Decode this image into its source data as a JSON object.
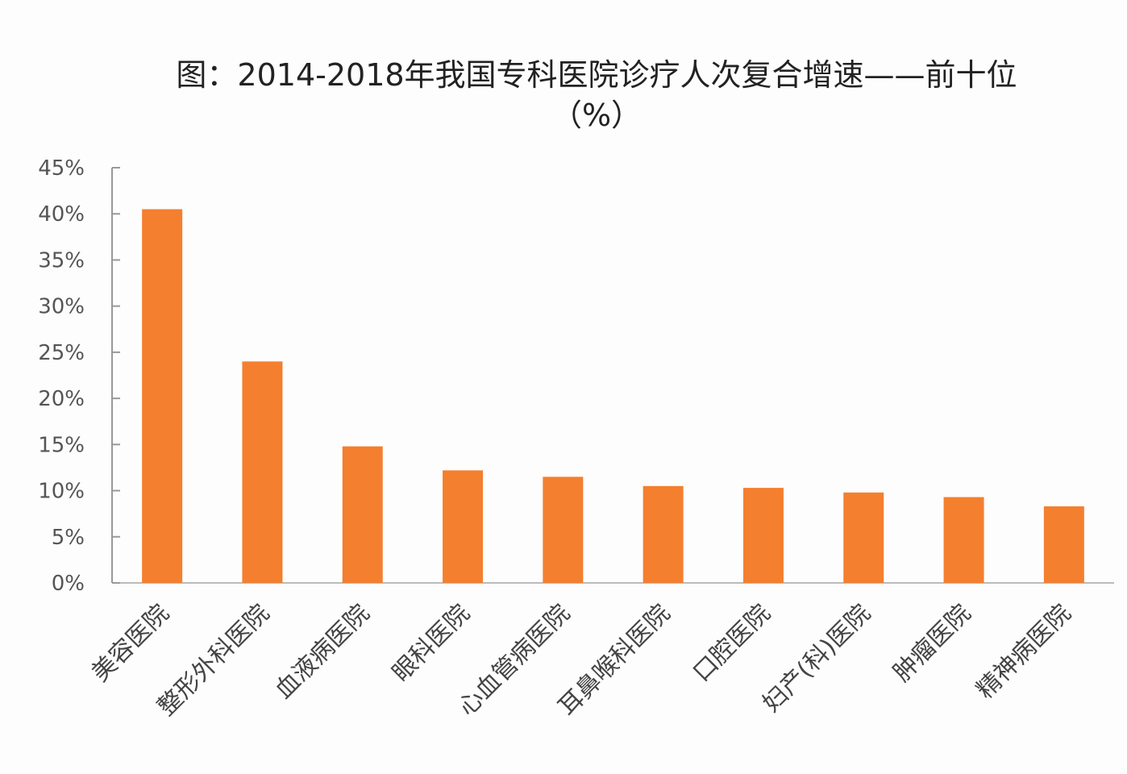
{
  "chart_data": {
    "type": "bar",
    "title": "图：2014-2018年我国专科医院诊疗人次复合增速——前十位",
    "subtitle": "（%）",
    "categories": [
      "美容医院",
      "整形外科医院",
      "血液病医院",
      "眼科医院",
      "心血管病医院",
      "耳鼻喉科医院",
      "口腔医院",
      "妇产(科)医院",
      "肿瘤医院",
      "精神病医院"
    ],
    "values": [
      40.5,
      24.0,
      14.8,
      12.2,
      11.5,
      10.5,
      10.3,
      9.8,
      9.3,
      8.3
    ],
    "xlabel": "",
    "ylabel": "",
    "ylim": [
      0,
      45
    ],
    "yticks": [
      "0%",
      "5%",
      "10%",
      "15%",
      "20%",
      "25%",
      "30%",
      "35%",
      "40%",
      "45%"
    ],
    "grid": false,
    "bar_color": "#F47F2E"
  }
}
